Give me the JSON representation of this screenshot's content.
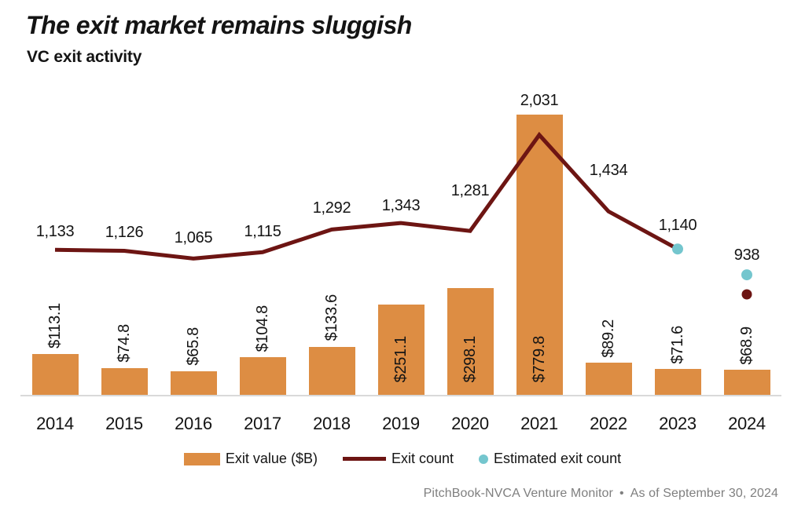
{
  "header": {
    "title": "The exit market remains sluggish",
    "subtitle": "VC exit activity"
  },
  "chart_data": {
    "type": "combo-bar-line",
    "title": "The exit market remains sluggish",
    "subtitle": "VC exit activity",
    "categories": [
      "2014",
      "2015",
      "2016",
      "2017",
      "2018",
      "2019",
      "2020",
      "2021",
      "2022",
      "2023",
      "2024"
    ],
    "grid": false,
    "axes_visible": false,
    "y_left_range_implied": [
      0,
      860
    ],
    "y_right_range_implied": [
      0,
      2470
    ],
    "legend_position": "bottom",
    "series": [
      {
        "name": "Exit value ($B)",
        "type": "bar",
        "color": "#DD8D43",
        "values": [
          113.1,
          74.8,
          65.8,
          104.8,
          133.6,
          251.1,
          298.1,
          779.8,
          89.2,
          71.6,
          68.9
        ],
        "labels": [
          "$113.1",
          "$74.8",
          "$65.8",
          "$104.8",
          "$133.6",
          "$251.1",
          "$298.1",
          "$779.8",
          "$89.2",
          "$71.6",
          "$68.9"
        ]
      },
      {
        "name": "Exit count",
        "type": "line",
        "color": "#6D1513",
        "x": [
          "2014",
          "2015",
          "2016",
          "2017",
          "2018",
          "2019",
          "2020",
          "2021",
          "2022",
          "2023"
        ],
        "values": [
          1133,
          1126,
          1065,
          1115,
          1292,
          1343,
          1281,
          2031,
          1434,
          1140
        ],
        "labels": [
          "1,133",
          "1,126",
          "1,065",
          "1,115",
          "1,292",
          "1,343",
          "1,281",
          "2,031",
          "1,434",
          "1,140"
        ]
      },
      {
        "name": "Estimated exit count",
        "type": "scatter",
        "color": "#74C6CE",
        "points": [
          {
            "x": "2023",
            "value": 1140,
            "label": ""
          },
          {
            "x": "2024",
            "value": 938,
            "label": "938"
          }
        ]
      },
      {
        "name": "Exit count 2024 marker (unlabeled)",
        "type": "scatter",
        "color": "#6D1513",
        "note": "value estimated from dot position",
        "points": [
          {
            "x": "2024",
            "value": 785,
            "label": ""
          }
        ]
      }
    ]
  },
  "legend": {
    "items": [
      {
        "label": "Exit value ($B)",
        "swatch": "bar",
        "color": "#DD8D43"
      },
      {
        "label": "Exit count",
        "swatch": "line",
        "color": "#6D1513"
      },
      {
        "label": "Estimated exit count",
        "swatch": "dot",
        "color": "#74C6CE"
      }
    ]
  },
  "footer": {
    "source": "PitchBook-NVCA Venture Monitor",
    "separator": "•",
    "as_of": "As of September 30, 2024"
  },
  "colors": {
    "bar": "#DD8D43",
    "line": "#6D1513",
    "estimated_dot": "#74C6CE",
    "baseline": "#D9D9D9",
    "text": "#141414",
    "footer_text": "#7F7F7F",
    "background": "#FFFFFF"
  }
}
